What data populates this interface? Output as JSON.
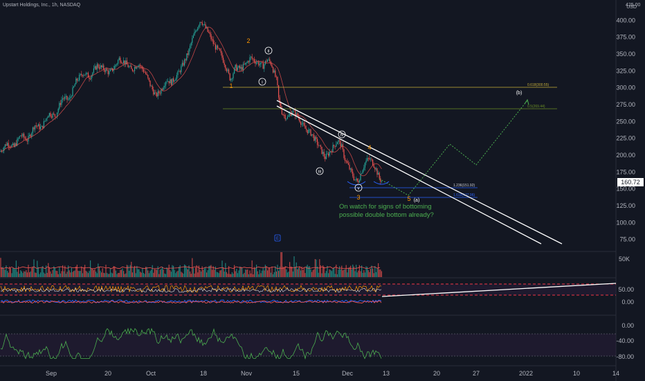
{
  "header": {
    "title": "Upstart Holdings, Inc., 1h, NASDAQ"
  },
  "chart_data": {
    "type": "candlestick",
    "title": "Upstart Holdings, Inc., 1h, NASDAQ",
    "currency": "USD",
    "last_price": "160.72",
    "colors": {
      "up": "#26a69a",
      "down": "#ef5350",
      "ma": "#ef5350",
      "fib_yellow": "#c9b03a",
      "fib_green": "#6b8e23",
      "projection": "#4caf50",
      "note": "#4caf50",
      "channel": "#ffffff",
      "wave_orange": "#ff9800"
    },
    "price_axis": {
      "ticks": [
        "400.00",
        "375.00",
        "350.00",
        "325.00",
        "300.00",
        "275.00",
        "250.00",
        "225.00",
        "200.00",
        "175.00",
        "150.00",
        "125.00",
        "100.00",
        "75.00"
      ],
      "top_label": "425.00",
      "ylim": [
        66,
        432
      ]
    },
    "volume_axis": {
      "ticks": [
        "50K"
      ]
    },
    "oscillator_axis": {
      "ticks": [
        "50.00",
        "0.00"
      ]
    },
    "lower_axis": {
      "ticks": [
        "0.00",
        "-40.00",
        "-80.00"
      ]
    },
    "time_axis": {
      "ticks": [
        "Sep",
        "20",
        "Oct",
        "18",
        "Nov",
        "15",
        "Dec",
        "13",
        "20",
        "27",
        "2022",
        "10",
        "14"
      ]
    },
    "price_path": [
      [
        0,
        205
      ],
      [
        10,
        218
      ],
      [
        20,
        212
      ],
      [
        30,
        230
      ],
      [
        40,
        222
      ],
      [
        50,
        245
      ],
      [
        60,
        240
      ],
      [
        70,
        262
      ],
      [
        80,
        258
      ],
      [
        90,
        285
      ],
      [
        100,
        282
      ],
      [
        110,
        310
      ],
      [
        120,
        322
      ],
      [
        130,
        316
      ],
      [
        140,
        333
      ],
      [
        150,
        328
      ],
      [
        158,
        322
      ],
      [
        165,
        330
      ],
      [
        172,
        343
      ],
      [
        180,
        338
      ],
      [
        190,
        326
      ],
      [
        200,
        336
      ],
      [
        210,
        322
      ],
      [
        218,
        302
      ],
      [
        225,
        288
      ],
      [
        232,
        295
      ],
      [
        240,
        312
      ],
      [
        248,
        308
      ],
      [
        258,
        322
      ],
      [
        266,
        338
      ],
      [
        272,
        352
      ],
      [
        278,
        372
      ],
      [
        284,
        388
      ],
      [
        290,
        401
      ],
      [
        296,
        390
      ],
      [
        302,
        380
      ],
      [
        310,
        362
      ],
      [
        318,
        352
      ],
      [
        325,
        335
      ],
      [
        333,
        312
      ],
      [
        340,
        330
      ],
      [
        348,
        328
      ],
      [
        356,
        336
      ],
      [
        362,
        345
      ],
      [
        368,
        340
      ],
      [
        374,
        336
      ],
      [
        380,
        332
      ],
      [
        386,
        342
      ],
      [
        392,
        336
      ],
      [
        396,
        322
      ],
      [
        400,
        310
      ],
      [
        403,
        280
      ],
      [
        408,
        262
      ],
      [
        415,
        255
      ],
      [
        422,
        265
      ],
      [
        430,
        258
      ],
      [
        440,
        240
      ],
      [
        450,
        232
      ],
      [
        460,
        215
      ],
      [
        470,
        196
      ],
      [
        480,
        210
      ],
      [
        488,
        222
      ],
      [
        493,
        215
      ],
      [
        498,
        195
      ],
      [
        505,
        180
      ],
      [
        512,
        165
      ],
      [
        517,
        160
      ],
      [
        522,
        175
      ],
      [
        528,
        190
      ],
      [
        533,
        195
      ],
      [
        538,
        190
      ],
      [
        543,
        180
      ],
      [
        548,
        166
      ],
      [
        552,
        160.72
      ]
    ],
    "annotations": {
      "waves": [
        "1",
        "2",
        "3",
        "4",
        "5"
      ],
      "subwaves": [
        "i",
        "ii",
        "iii",
        "iv",
        "v"
      ],
      "corrective": [
        "(a)",
        "(b)"
      ],
      "fib_labels": [
        "0.618(300.55)",
        "0.5(269.44)",
        "1.236(151.92)",
        "1.618(137.96)"
      ],
      "note_lines": [
        "On watch for signs of bottoming",
        "possible double bottom already?"
      ]
    }
  }
}
